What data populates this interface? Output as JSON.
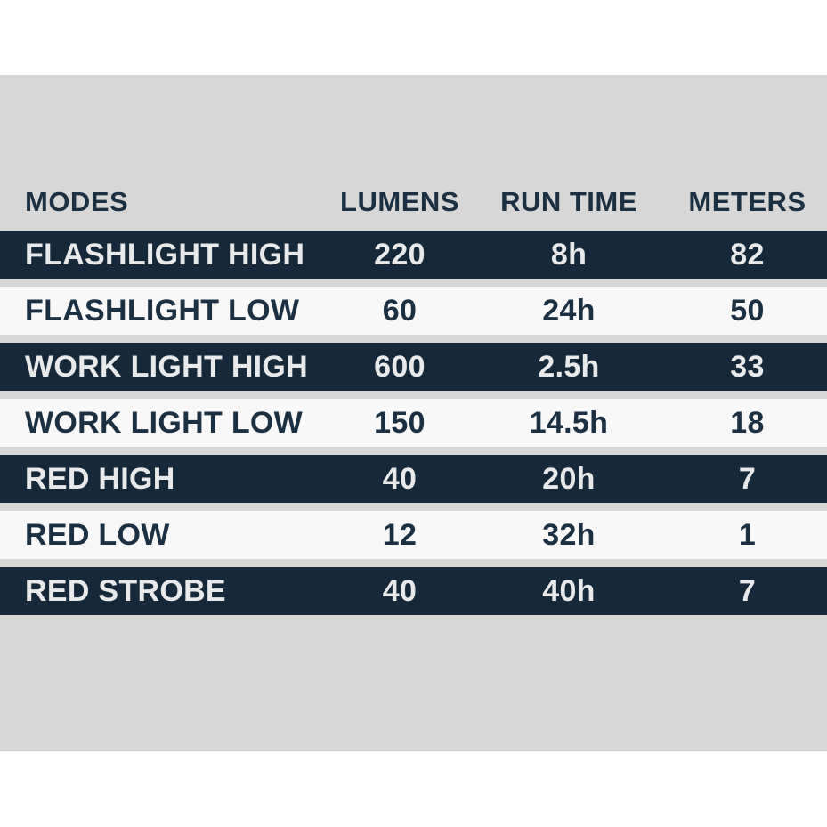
{
  "table": {
    "columns": [
      "MODES",
      "LUMENS",
      "RUN TIME",
      "METERS"
    ],
    "rows": [
      {
        "mode": "FLASHLIGHT HIGH",
        "lumens": "220",
        "run_time": "8h",
        "meters": "82",
        "variant": "dark"
      },
      {
        "mode": "FLASHLIGHT LOW",
        "lumens": "60",
        "run_time": "24h",
        "meters": "50",
        "variant": "light"
      },
      {
        "mode": "WORK LIGHT HIGH",
        "lumens": "600",
        "run_time": "2.5h",
        "meters": "33",
        "variant": "dark"
      },
      {
        "mode": "WORK LIGHT LOW",
        "lumens": "150",
        "run_time": "14.5h",
        "meters": "18",
        "variant": "light"
      },
      {
        "mode": "RED HIGH",
        "lumens": "40",
        "run_time": "20h",
        "meters": "7",
        "variant": "dark"
      },
      {
        "mode": "RED LOW",
        "lumens": "12",
        "run_time": "32h",
        "meters": "1",
        "variant": "light"
      },
      {
        "mode": "RED STROBE",
        "lumens": "40",
        "run_time": "40h",
        "meters": "7",
        "variant": "dark"
      }
    ]
  },
  "chart_data": {
    "type": "table",
    "columns": [
      "MODES",
      "LUMENS",
      "RUN TIME",
      "METERS"
    ],
    "rows": [
      [
        "FLASHLIGHT HIGH",
        "220",
        "8h",
        "82"
      ],
      [
        "FLASHLIGHT LOW",
        "60",
        "24h",
        "50"
      ],
      [
        "WORK LIGHT HIGH",
        "600",
        "2.5h",
        "33"
      ],
      [
        "WORK LIGHT LOW",
        "150",
        "14.5h",
        "18"
      ],
      [
        "RED HIGH",
        "40",
        "20h",
        "7"
      ],
      [
        "RED LOW",
        "12",
        "32h",
        "1"
      ],
      [
        "RED STROBE",
        "40",
        "40h",
        "7"
      ]
    ]
  },
  "colors": {
    "row_dark_bg": "#15293a",
    "row_light_bg": "#f8f8f8",
    "panel_bg": "#d7d7d7",
    "text_dark": "#1b3042",
    "text_light": "#e7e9ea",
    "page_bg": "#ffffff"
  }
}
